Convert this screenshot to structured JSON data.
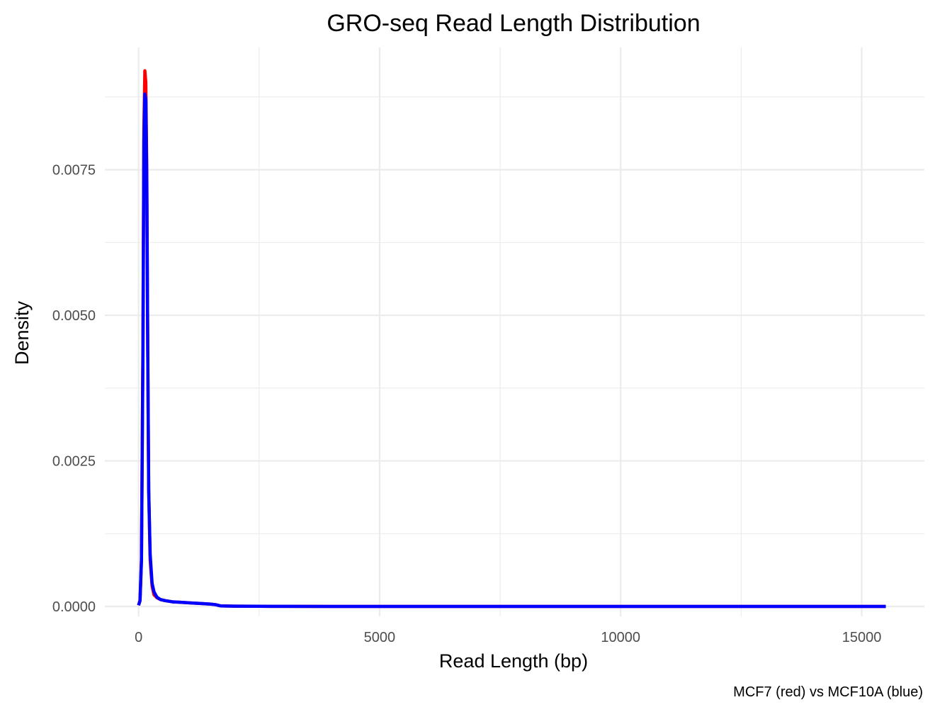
{
  "chart_data": {
    "type": "line",
    "title": "GRO-seq Read Length Distribution",
    "xlabel": "Read Length (bp)",
    "ylabel": "Density",
    "caption": "MCF7 (red) vs MCF10A (blue)",
    "xlim": [
      -700,
      16300
    ],
    "ylim": [
      -0.00017,
      0.0096
    ],
    "x_ticks": [
      0,
      5000,
      10000,
      15000
    ],
    "x_tick_labels": [
      "0",
      "5000",
      "10000",
      "15000"
    ],
    "y_ticks": [
      0,
      0.0025,
      0.005,
      0.0075
    ],
    "y_tick_labels": [
      "0.0000",
      "0.0025",
      "0.0050",
      "0.0075"
    ],
    "grid": true,
    "legend": "none",
    "series": [
      {
        "name": "MCF7",
        "color": "#ff0000",
        "x": [
          0,
          30,
          60,
          90,
          110,
          130,
          150,
          170,
          190,
          210,
          240,
          280,
          320,
          380,
          450,
          550,
          700,
          900,
          1100,
          1300,
          1500,
          1600,
          1700,
          1800,
          2000,
          2500,
          3000,
          4000,
          6000,
          8000,
          10000,
          12000,
          14000,
          15500
        ],
        "values": [
          2e-05,
          0.0001,
          0.0008,
          0.0045,
          0.0082,
          0.0092,
          0.009,
          0.0075,
          0.0045,
          0.002,
          0.0008,
          0.00035,
          0.0002,
          0.00015,
          0.00012,
          0.0001,
          8e-05,
          7e-05,
          6e-05,
          5e-05,
          4e-05,
          3e-05,
          1e-05,
          8e-06,
          5e-06,
          3e-06,
          2e-06,
          1e-06,
          5e-07,
          3e-07,
          2e-07,
          2e-07,
          1e-07,
          1e-07
        ]
      },
      {
        "name": "MCF10A",
        "color": "#0000ff",
        "x": [
          0,
          30,
          60,
          90,
          110,
          130,
          150,
          170,
          190,
          210,
          240,
          280,
          320,
          380,
          450,
          550,
          700,
          900,
          1100,
          1300,
          1500,
          1600,
          1700,
          1800,
          2000,
          2500,
          3000,
          4000,
          6000,
          8000,
          10000,
          12000,
          14000,
          15500
        ],
        "values": [
          2e-05,
          0.0001,
          0.0008,
          0.0043,
          0.008,
          0.0088,
          0.0087,
          0.0073,
          0.0044,
          0.002,
          0.0009,
          0.0004,
          0.00025,
          0.00016,
          0.00012,
          0.0001,
          8e-05,
          7e-05,
          6e-05,
          5e-05,
          4e-05,
          3e-05,
          1e-05,
          8e-06,
          5e-06,
          3e-06,
          2e-06,
          1e-06,
          5e-07,
          3e-07,
          2e-07,
          2e-07,
          1e-07,
          1e-07
        ]
      }
    ]
  }
}
